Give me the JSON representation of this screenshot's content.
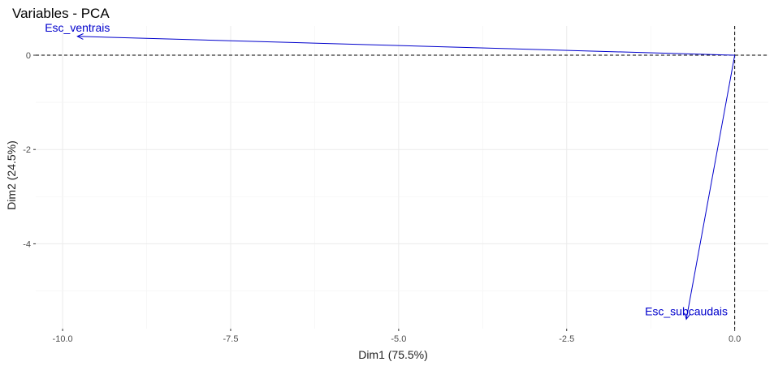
{
  "chart_data": {
    "type": "scatter",
    "title": "Variables - PCA",
    "xlabel": "Dim1 (75.5%)",
    "ylabel": "Dim2 (24.5%)",
    "xlim": [
      -10.4,
      0.5
    ],
    "ylim": [
      -5.8,
      0.62
    ],
    "x_ticks": [
      -10.0,
      -7.5,
      -5.0,
      -2.5,
      0.0
    ],
    "x_tick_labels": [
      "-10.0",
      "-7.5",
      "-5.0",
      "-2.5",
      "0.0"
    ],
    "y_ticks": [
      0,
      -2,
      -4
    ],
    "y_tick_labels": [
      "0",
      "-2",
      "-4"
    ],
    "grid": true,
    "reference_lines": {
      "x": 0,
      "y": 0
    },
    "arrow_color": "#0000cc",
    "variables": [
      {
        "label": "Esc_ventrais",
        "x": -9.78,
        "y": 0.4
      },
      {
        "label": "Esc_subcaudais",
        "x": -0.72,
        "y": -5.6
      }
    ]
  }
}
